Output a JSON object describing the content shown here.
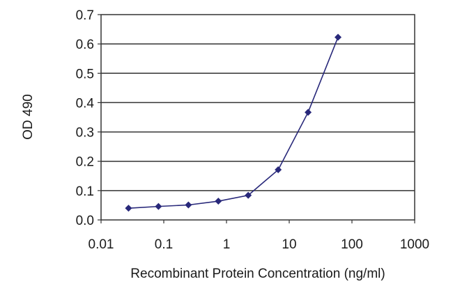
{
  "chart_data": {
    "type": "line",
    "title": "",
    "xlabel": "Recombinant Protein Concentration (ng/ml)",
    "ylabel": "OD 490",
    "x_scale": "log",
    "xlim": [
      0.01,
      1000
    ],
    "ylim": [
      0.0,
      0.7
    ],
    "x_ticks": [
      "0.01",
      "0.1",
      "1",
      "10",
      "100",
      "1000"
    ],
    "y_ticks": [
      "0.0",
      "0.1",
      "0.2",
      "0.3",
      "0.4",
      "0.5",
      "0.6",
      "0.7"
    ],
    "grid": "horizontal",
    "legend": "none",
    "series": [
      {
        "x": [
          0.0274,
          0.0823,
          0.247,
          0.741,
          2.22,
          6.67,
          20,
          60
        ],
        "y": [
          0.04,
          0.046,
          0.051,
          0.064,
          0.084,
          0.171,
          0.367,
          0.623
        ],
        "color": "#28287a",
        "marker": "diamond"
      }
    ]
  }
}
